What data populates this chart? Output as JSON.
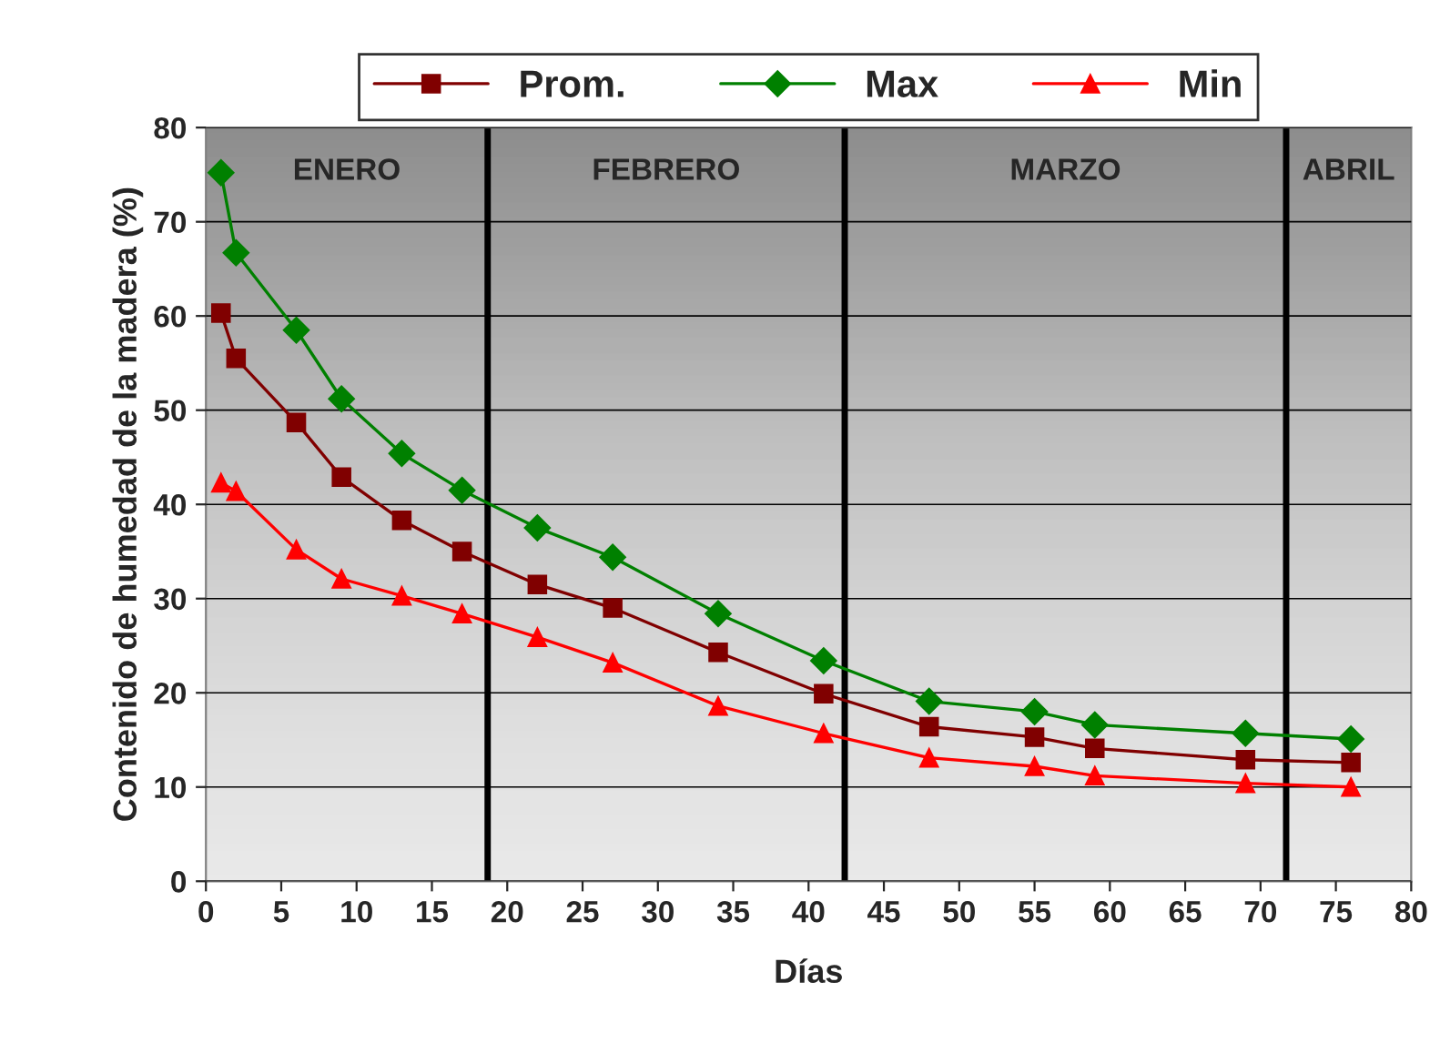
{
  "chart_data": {
    "type": "line",
    "xlabel": "Días",
    "ylabel": "Contenido de humedad de la madera (%)",
    "x": [
      1,
      2,
      6,
      9,
      13,
      17,
      22,
      27,
      34,
      41,
      48,
      55,
      59,
      69,
      76
    ],
    "series": [
      {
        "name": "Prom.",
        "color": "#800000",
        "marker": "square",
        "values": [
          60.3,
          55.5,
          48.7,
          42.9,
          38.3,
          35,
          31.5,
          29,
          24.3,
          19.9,
          16.4,
          15.3,
          14.1,
          12.9,
          12.6
        ]
      },
      {
        "name": "Max",
        "color": "#008000",
        "marker": "diamond",
        "values": [
          75.2,
          66.7,
          58.5,
          51.2,
          45.4,
          41.5,
          37.5,
          34.4,
          28.4,
          23.4,
          19.1,
          18,
          16.6,
          15.7,
          15.1
        ]
      },
      {
        "name": "Min",
        "color": "#ff0000",
        "marker": "triangle",
        "values": [
          42.3,
          41.4,
          35.2,
          32.1,
          30.3,
          28.4,
          25.9,
          23.2,
          18.6,
          15.7,
          13.1,
          12.2,
          11.2,
          10.4,
          10
        ]
      }
    ],
    "xlim": [
      0,
      80
    ],
    "xticks": [
      0,
      5,
      10,
      15,
      20,
      25,
      30,
      35,
      40,
      45,
      50,
      55,
      60,
      65,
      70,
      75,
      80
    ],
    "ylim": [
      0,
      80
    ],
    "yticks": [
      0,
      10,
      20,
      30,
      40,
      50,
      60,
      70,
      80
    ],
    "grid": "y",
    "legend": "top",
    "line_style": "solid",
    "ref_lines": [
      {
        "axis": "x",
        "value": 18.7,
        "label": null,
        "color": "#000000"
      },
      {
        "axis": "x",
        "value": 42.4,
        "label": null,
        "color": "#000000"
      },
      {
        "axis": "x",
        "value": 71.7,
        "label": null,
        "color": "#000000"
      }
    ],
    "bands": [
      {
        "axis": "x",
        "from": 0,
        "to": 18.7,
        "label": "ENERO",
        "color": "#c0c0c0"
      },
      {
        "axis": "x",
        "from": 18.7,
        "to": 42.4,
        "label": "FEBRERO",
        "color": "#c0c0c0"
      },
      {
        "axis": "x",
        "from": 42.4,
        "to": 71.7,
        "label": "MARZO",
        "color": "#c0c0c0"
      },
      {
        "axis": "x",
        "from": 71.7,
        "to": 80,
        "label": "ABRIL",
        "color": "#c0c0c0"
      }
    ]
  }
}
